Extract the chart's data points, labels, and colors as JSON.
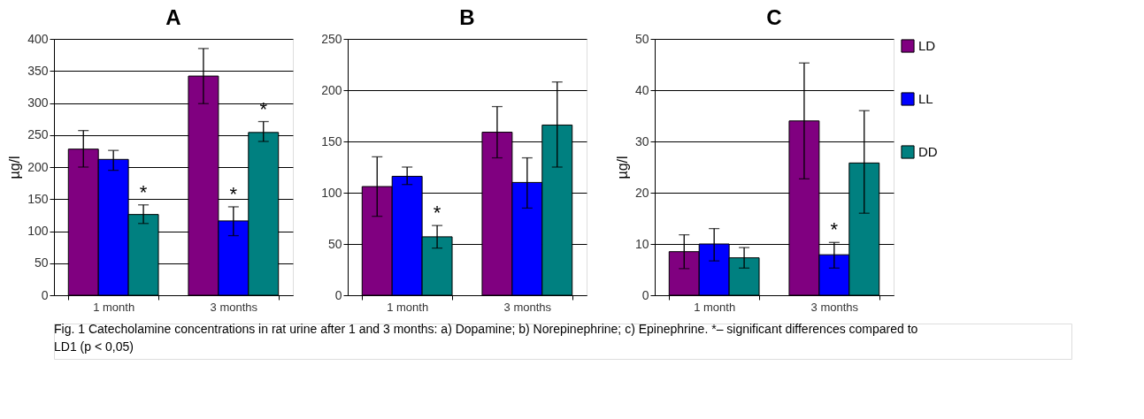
{
  "chart_data": [
    {
      "type": "bar",
      "title": "A",
      "ylabel": "µg/l",
      "categories": [
        "1 month",
        "3 months"
      ],
      "ylim": [
        0,
        400
      ],
      "yticks": [
        0,
        50,
        100,
        150,
        200,
        250,
        300,
        350,
        400
      ],
      "grid": "y",
      "series": [
        {
          "color": "#800080",
          "values": [
            228,
            342
          ],
          "errors": [
            [
              200,
              257
            ],
            [
              299,
              385
            ]
          ]
        },
        {
          "color": "#0000ff",
          "values": [
            212,
            116
          ],
          "errors": [
            [
              195,
              226
            ],
            [
              93,
              138
            ]
          ],
          "value_labels": [
            null,
            "*"
          ]
        },
        {
          "color": "#008080",
          "values": [
            126,
            254
          ],
          "errors": [
            [
              112,
              141
            ],
            [
              240,
              271
            ]
          ],
          "value_labels": [
            "*",
            "*"
          ]
        }
      ],
      "annotations": [
        "Fig. 1 Catecholamine concentrations in rat urine after 1 and 3 months: a) Dopamine; b) Norepinephrine; c) Epinephrine. *– significant differences compared to LD1 (p < 0,05)"
      ]
    },
    {
      "type": "bar",
      "title": "B",
      "categories": [
        "1 month",
        "3 months"
      ],
      "ylim": [
        0,
        250
      ],
      "yticks": [
        0,
        50,
        100,
        150,
        200,
        250
      ],
      "grid": "y",
      "series": [
        {
          "color": "#800080",
          "values": [
            106,
            159
          ],
          "errors": [
            [
              77,
              135
            ],
            [
              134,
              184
            ]
          ]
        },
        {
          "color": "#0000ff",
          "values": [
            116,
            110
          ],
          "errors": [
            [
              108,
              125
            ],
            [
              85,
              134
            ]
          ]
        },
        {
          "color": "#008080",
          "values": [
            57,
            166
          ],
          "errors": [
            [
              46,
              68
            ],
            [
              125,
              208
            ]
          ],
          "value_labels": [
            "*",
            null
          ]
        }
      ]
    },
    {
      "type": "bar",
      "title": "C",
      "ylabel": "µg/l",
      "categories": [
        "1 month",
        "3 months"
      ],
      "ylim": [
        0,
        50
      ],
      "yticks": [
        0,
        10,
        20,
        30,
        40,
        50
      ],
      "grid": "y",
      "legend": "right",
      "series": [
        {
          "name": "LD",
          "color": "#800080",
          "values": [
            8.5,
            34
          ],
          "errors": [
            [
              5.2,
              11.8
            ],
            [
              22.7,
              45.3
            ]
          ]
        },
        {
          "name": "LL",
          "color": "#0000ff",
          "values": [
            10,
            7.9
          ],
          "errors": [
            [
              6.7,
              13
            ],
            [
              5.3,
              10.3
            ]
          ],
          "value_labels": [
            null,
            "*"
          ]
        },
        {
          "name": "DD",
          "color": "#008080",
          "values": [
            7.3,
            25.8
          ],
          "errors": [
            [
              5.3,
              9.3
            ],
            [
              16,
              36
            ]
          ]
        }
      ]
    }
  ]
}
